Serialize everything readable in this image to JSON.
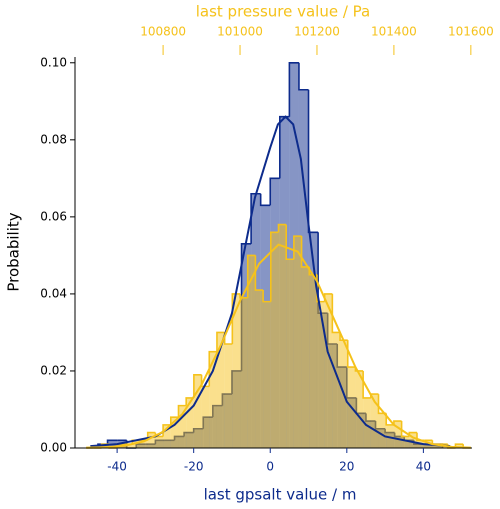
{
  "chart_data": {
    "type": "histogram",
    "xlabel": "last gpsalt value / m",
    "x2label": "last pressure value / Pa",
    "ylabel": "Probability",
    "xlim": [
      -51,
      52.7
    ],
    "xticks": [
      -40,
      -20,
      0,
      20,
      40
    ],
    "x2lim": [
      100571,
      101603
    ],
    "x2ticks": [
      100800,
      101000,
      101200,
      101400,
      101600
    ],
    "ylim": [
      0,
      0.1015
    ],
    "yticks": [
      {
        "value": 0,
        "label": "0.00"
      },
      {
        "value": 0.02,
        "label": "0.02"
      },
      {
        "value": 0.04,
        "label": "0.04"
      },
      {
        "value": 0.06,
        "label": "0.06"
      },
      {
        "value": 0.08,
        "label": "0.08"
      },
      {
        "value": 0.1,
        "label": "0.10"
      }
    ],
    "x_color": "#0d2b8c",
    "x2_color": "#f5c21b",
    "series": [
      {
        "axis": "x",
        "color": "#0d2b8c",
        "bins": [
          -45,
          -42.5,
          -40,
          -37.5,
          -35,
          -32.5,
          -30,
          -27.5,
          -25,
          -22.5,
          -20,
          -17.5,
          -15,
          -12.5,
          -10,
          -7.5,
          -5,
          -2.5,
          0,
          2.5,
          5,
          7.5,
          10,
          12.5,
          15,
          17.5,
          20,
          22.5,
          25,
          27.5,
          30,
          32.5,
          35,
          37.5,
          40,
          42.5,
          45
        ],
        "values": [
          0.001,
          0.002,
          0.002,
          0,
          0.001,
          0.001,
          0.002,
          0.002,
          0.003,
          0.004,
          0.005,
          0.008,
          0.011,
          0.014,
          0.02,
          0.053,
          0.066,
          0.063,
          0.07,
          0.086,
          0.1,
          0.093,
          0.056,
          0.035,
          0.027,
          0.021,
          0.013,
          0.009,
          0.007,
          0.005,
          0.004,
          0.003,
          0.002,
          0.001,
          0.001,
          0.001
        ],
        "kde": {
          "x": [
            -47,
            -40,
            -30,
            -25,
            -20,
            -15,
            -10,
            -7,
            -4,
            0,
            2,
            4,
            6,
            8,
            10,
            12,
            15,
            20,
            25,
            30,
            40,
            47
          ],
          "y": [
            0.0005,
            0.001,
            0.003,
            0.006,
            0.011,
            0.02,
            0.035,
            0.05,
            0.065,
            0.078,
            0.084,
            0.086,
            0.084,
            0.075,
            0.058,
            0.042,
            0.025,
            0.012,
            0.006,
            0.003,
            0.001,
            0.0005
          ]
        }
      },
      {
        "axis": "x2",
        "color": "#f5c21b",
        "bins": [
          100600,
          100620,
          100640,
          100660,
          100680,
          100700,
          100720,
          100740,
          100760,
          100780,
          100800,
          100820,
          100840,
          100860,
          100880,
          100900,
          100920,
          100940,
          100960,
          100980,
          101000,
          101020,
          101040,
          101060,
          101080,
          101100,
          101120,
          101140,
          101160,
          101180,
          101200,
          101220,
          101240,
          101260,
          101280,
          101300,
          101320,
          101340,
          101360,
          101380,
          101400,
          101420,
          101440,
          101460,
          101480,
          101500,
          101520,
          101540,
          101560,
          101580,
          101600
        ],
        "values": [
          0,
          0,
          0.001,
          0,
          0.001,
          0.001,
          0.002,
          0.002,
          0.004,
          0.003,
          0.006,
          0.008,
          0.011,
          0.013,
          0.019,
          0.016,
          0.025,
          0.03,
          0.027,
          0.04,
          0.039,
          0.05,
          0.041,
          0.038,
          0.056,
          0.058,
          0.049,
          0.055,
          0.047,
          0.045,
          0.038,
          0.04,
          0.03,
          0.028,
          0.021,
          0.02,
          0.013,
          0.014,
          0.009,
          0.006,
          0.007,
          0.003,
          0.004,
          0.002,
          0.002,
          0.001,
          0.001,
          0,
          0.001,
          0
        ],
        "kde": {
          "x": [
            100600,
            100650,
            100700,
            100750,
            100800,
            100850,
            100900,
            100950,
            101000,
            101050,
            101100,
            101150,
            101200,
            101250,
            101300,
            101350,
            101400,
            101450,
            101500,
            101550,
            101600
          ],
          "y": [
            0.0001,
            0.0002,
            0.0006,
            0.0017,
            0.0042,
            0.0088,
            0.0164,
            0.0267,
            0.0382,
            0.0479,
            0.0528,
            0.051,
            0.0433,
            0.0322,
            0.021,
            0.012,
            0.006,
            0.0027,
            0.001,
            0.0003,
            0.0001
          ]
        }
      }
    ]
  }
}
